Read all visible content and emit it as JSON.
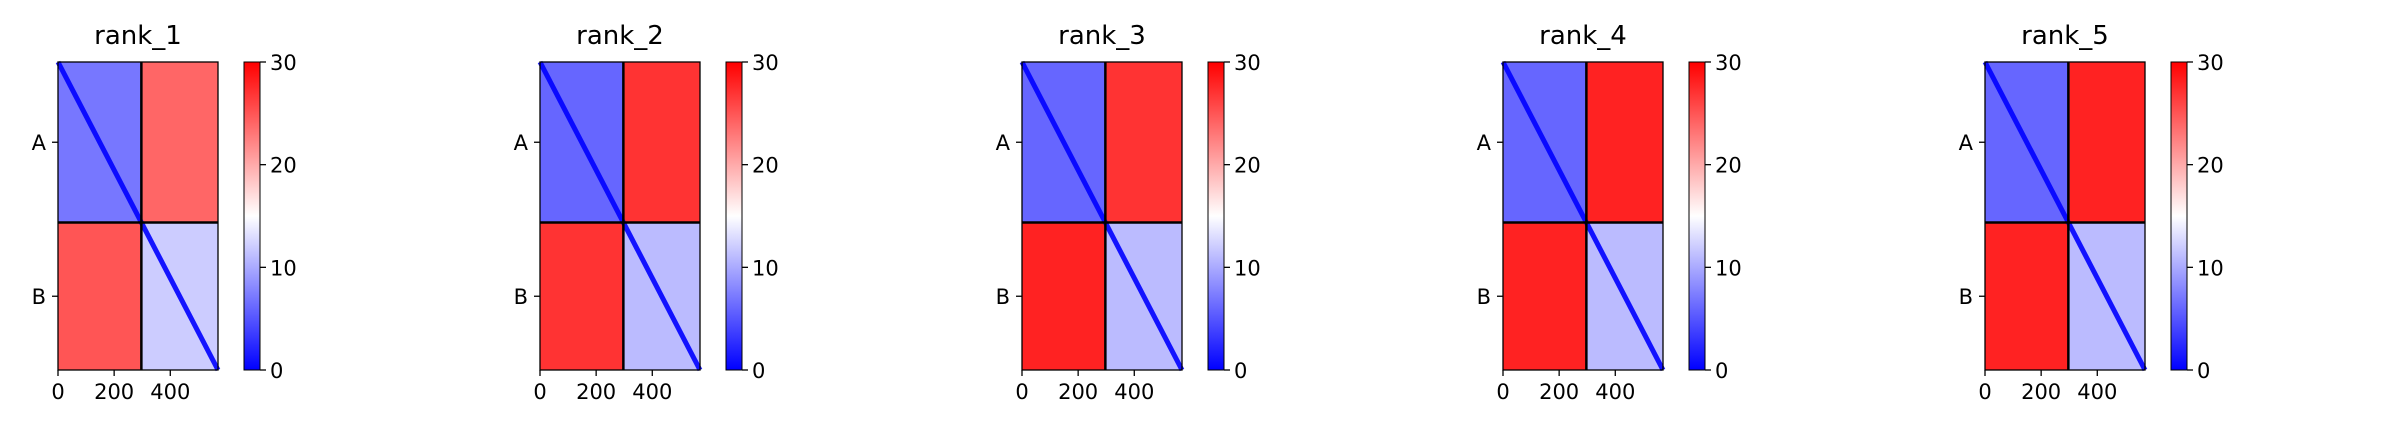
{
  "chart_data": [
    {
      "type": "heatmap",
      "title": "rank_1",
      "chains": [
        "A",
        "B"
      ],
      "chain_boundary": 297,
      "matrix_size": 570,
      "xticks": [
        0,
        200,
        400
      ],
      "colorbar": {
        "min": 0,
        "max": 30,
        "ticks": [
          0,
          10,
          20,
          30
        ],
        "colors": [
          "#0000ff",
          "#ffffff",
          "#ff0000"
        ]
      },
      "block_mean_values": {
        "A_A": 7,
        "A_B": 24,
        "B_A": 25,
        "B_B": 12
      }
    },
    {
      "type": "heatmap",
      "title": "rank_2",
      "chains": [
        "A",
        "B"
      ],
      "chain_boundary": 297,
      "matrix_size": 570,
      "xticks": [
        0,
        200,
        400
      ],
      "colorbar": {
        "min": 0,
        "max": 30,
        "ticks": [
          0,
          10,
          20,
          30
        ],
        "colors": [
          "#0000ff",
          "#ffffff",
          "#ff0000"
        ]
      },
      "block_mean_values": {
        "A_A": 6,
        "A_B": 27,
        "B_A": 27,
        "B_B": 11
      }
    },
    {
      "type": "heatmap",
      "title": "rank_3",
      "chains": [
        "A",
        "B"
      ],
      "chain_boundary": 297,
      "matrix_size": 570,
      "xticks": [
        0,
        200,
        400
      ],
      "colorbar": {
        "min": 0,
        "max": 30,
        "ticks": [
          0,
          10,
          20,
          30
        ],
        "colors": [
          "#0000ff",
          "#ffffff",
          "#ff0000"
        ]
      },
      "block_mean_values": {
        "A_A": 6,
        "A_B": 27,
        "B_A": 28,
        "B_B": 11
      }
    },
    {
      "type": "heatmap",
      "title": "rank_4",
      "chains": [
        "A",
        "B"
      ],
      "chain_boundary": 297,
      "matrix_size": 570,
      "xticks": [
        0,
        200,
        400
      ],
      "colorbar": {
        "min": 0,
        "max": 30,
        "ticks": [
          0,
          10,
          20,
          30
        ],
        "colors": [
          "#0000ff",
          "#ffffff",
          "#ff0000"
        ]
      },
      "block_mean_values": {
        "A_A": 6,
        "A_B": 28,
        "B_A": 28,
        "B_B": 11
      }
    },
    {
      "type": "heatmap",
      "title": "rank_5",
      "chains": [
        "A",
        "B"
      ],
      "chain_boundary": 297,
      "matrix_size": 570,
      "xticks": [
        0,
        200,
        400
      ],
      "colorbar": {
        "min": 0,
        "max": 30,
        "ticks": [
          0,
          10,
          20,
          30
        ],
        "colors": [
          "#0000ff",
          "#ffffff",
          "#ff0000"
        ]
      },
      "block_mean_values": {
        "A_A": 6,
        "A_B": 28,
        "B_A": 28,
        "B_B": 11
      }
    }
  ]
}
